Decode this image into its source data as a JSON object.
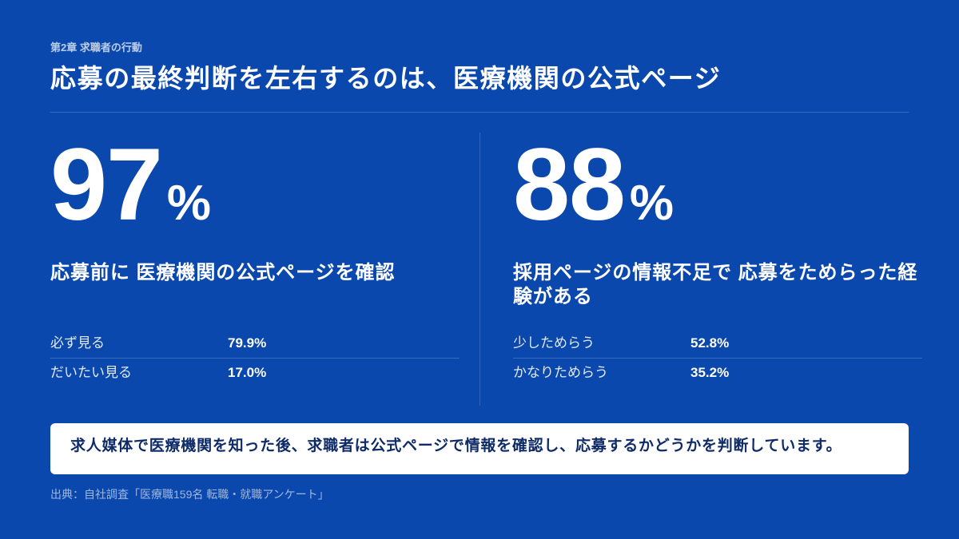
{
  "header": {
    "chapter": "第2章 求職者の行動",
    "title": "応募の最終判断を左右するのは、医療機関の公式ページ"
  },
  "stats": [
    {
      "number": "97",
      "unit": "%",
      "caption": "応募前に 医療機関の公式ページを確認",
      "rows": [
        {
          "label": "必ず見る",
          "value": "79.9%"
        },
        {
          "label": "だいたい見る",
          "value": "17.0%"
        }
      ]
    },
    {
      "number": "88",
      "unit": "%",
      "caption": "採用ページの情報不足で 応募をためらった経験がある",
      "rows": [
        {
          "label": "少しためらう",
          "value": "52.8%"
        },
        {
          "label": "かなりためらう",
          "value": "35.2%"
        }
      ]
    }
  ],
  "summary": {
    "text": "求人媒体で医療機関を知った後、求職者は公式ページで情報を確認し、応募するかどうかを判断しています。"
  },
  "footer": {
    "source": "出典：自社調査「医療職159名 転職・就職アンケート」"
  },
  "colors": {
    "background": "#0B48AE",
    "summary_box": "#FFFFFF",
    "summary_text": "#0E2B67"
  }
}
